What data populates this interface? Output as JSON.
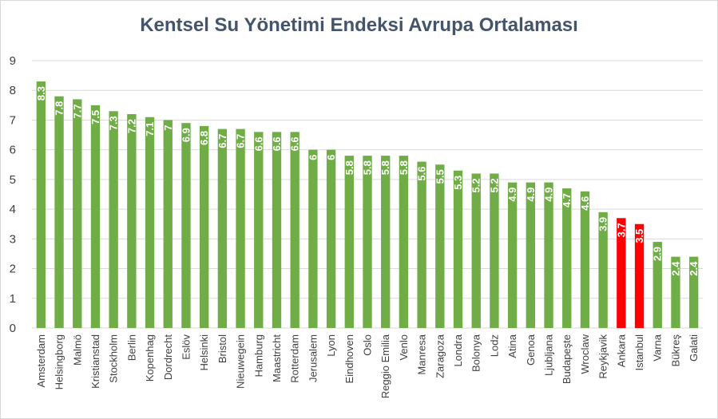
{
  "chart_data": {
    "type": "bar",
    "title": "Kentsel Su Yönetimi Endeksi Avrupa Ortalaması",
    "xlabel": "",
    "ylabel": "",
    "ylim": [
      0,
      9
    ],
    "yticks": [
      0,
      1,
      2,
      3,
      4,
      5,
      6,
      7,
      8,
      9
    ],
    "grid": true,
    "legend": "none",
    "categories": [
      "Amsterdam",
      "Helsingborg",
      "Malmö",
      "Kristianstad",
      "Stockholm",
      "Berlin",
      "Kopenhag",
      "Dordrecht",
      "Eslöv",
      "Helsinki",
      "Bristol",
      "Nieuwegein",
      "Hamburg",
      "Maastricht",
      "Rotterdam",
      "Jerusalem",
      "Lyon",
      "Eindhoven",
      "Oslo",
      "Reggio Emilia",
      "Venlo",
      "Manresa",
      "Zaragoza",
      "Londra",
      "Bolonya",
      "Lodz",
      "Atina",
      "Genoa",
      "Ljubljana",
      "Budapeşte",
      "Wroclaw",
      "Reykjavik",
      "Ankara",
      "Istanbul",
      "Varna",
      "Bükreş",
      "Galati"
    ],
    "values": [
      8.3,
      7.8,
      7.7,
      7.5,
      7.3,
      7.2,
      7.1,
      7,
      6.9,
      6.8,
      6.7,
      6.7,
      6.6,
      6.6,
      6.6,
      6,
      6,
      5.8,
      5.8,
      5.8,
      5.8,
      5.6,
      5.5,
      5.3,
      5.2,
      5.2,
      4.9,
      4.9,
      4.9,
      4.7,
      4.6,
      3.9,
      3.7,
      3.5,
      2.9,
      2.4,
      2.4
    ],
    "data_labels": [
      "8.3",
      "7.8",
      "7.7",
      "7.5",
      "7.3",
      "7.2",
      "7.1",
      "7",
      "6.9",
      "6.8",
      "6.7",
      "6.7",
      "6.6",
      "6.6",
      "6.6",
      "6",
      "6",
      "5.8",
      "5.8",
      "5.8",
      "5.8",
      "5.6",
      "5.5",
      "5.3",
      "5.2",
      "5.2",
      "4.9",
      "4.9",
      "4.9",
      "4.7",
      "4.6",
      "3.9",
      "3.7",
      "3.5",
      "2.9",
      "2.4",
      "2.4"
    ],
    "colors": {
      "default": "#70ad47",
      "highlight": "#ff0000",
      "grid": "#d9d9d9",
      "title": "#44546a"
    },
    "highlighted": [
      "Ankara",
      "Istanbul"
    ]
  }
}
